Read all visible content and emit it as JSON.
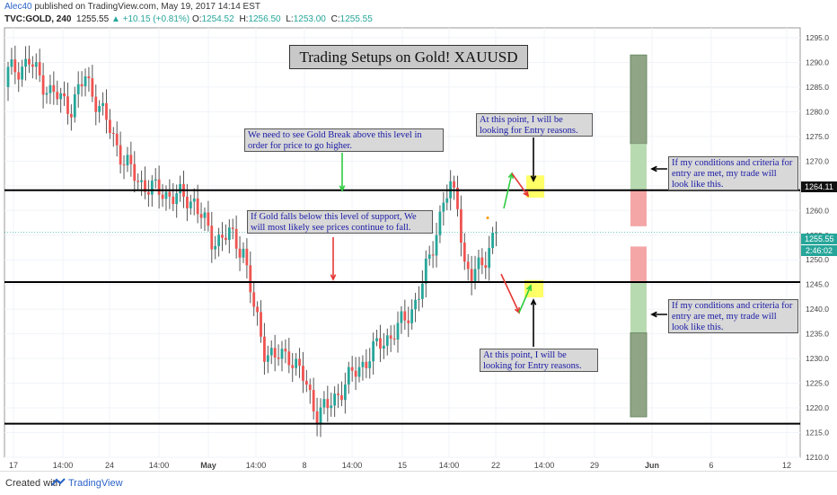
{
  "header": {
    "author": "Alec40",
    "published": "published on TradingView.com, May 19, 2017 14:14 EST",
    "symbol": "TVC:GOLD, 240",
    "last": "1255.55",
    "change": "▲ +10.15 (+0.81%)",
    "open_label": "O:",
    "open": "1254.52",
    "high_label": "H:",
    "high": "1256.50",
    "low_label": "L:",
    "low": "1253.00",
    "close_label": "C:",
    "close": "1255.55"
  },
  "title": "Trading Setups on Gold! XAUUSD",
  "annotations": {
    "break_above": "We need to see Gold Break above this level in order for price to go higher.",
    "falls_below": "If Gold falls below this level of support, We will most likely see prices continue to fall.",
    "entry_upper": "At this point, I will be looking for Entry reasons.",
    "entry_lower": "At this point, I will be looking for Entry reasons.",
    "trade_upper": "If my conditions and criteria for entry are met, my trade will look like this.",
    "trade_lower": "If my conditions and criteria for entry are met, my trade will look like this."
  },
  "price_labels": {
    "resistance": "1264.11",
    "last_price": "1255.55",
    "countdown": "2:46:02"
  },
  "footer": {
    "created": "Created with",
    "brand": "TradingView"
  },
  "colors": {
    "up": "#26a69a",
    "down": "#ef5350",
    "level_line": "#000000",
    "highlight": "#ffff66",
    "target": "#8fbf7f",
    "stop": "#f4a0a0"
  },
  "chart_data": {
    "type": "candlestick",
    "instrument": "TVC:GOLD",
    "timeframe": "240",
    "ylim": [
      1210,
      1297
    ],
    "y_ticks": [
      1210,
      1215,
      1220,
      1225,
      1230,
      1235,
      1240,
      1245,
      1250,
      1255,
      1260,
      1265,
      1270,
      1275,
      1280,
      1285,
      1290,
      1295
    ],
    "x_ticks": [
      "17",
      "14:00",
      "24",
      "14:00",
      "May",
      "14:00",
      "8",
      "14:00",
      "15",
      "14:00",
      "22",
      "14:00",
      "29",
      "Jun",
      "6",
      "12"
    ],
    "horizontal_levels": [
      1264.11,
      1245.5,
      1216.8
    ],
    "path_anchors": [
      [
        0,
        1288
      ],
      [
        6,
        1290
      ],
      [
        12,
        1284
      ],
      [
        18,
        1281
      ],
      [
        22,
        1287
      ],
      [
        28,
        1278
      ],
      [
        33,
        1270
      ],
      [
        37,
        1266
      ],
      [
        42,
        1264
      ],
      [
        47,
        1263
      ],
      [
        53,
        1262
      ],
      [
        58,
        1254
      ],
      [
        63,
        1255
      ],
      [
        67,
        1252
      ],
      [
        70,
        1240
      ],
      [
        73,
        1232
      ],
      [
        76,
        1230
      ],
      [
        80,
        1231
      ],
      [
        84,
        1226
      ],
      [
        88,
        1219
      ],
      [
        91,
        1220
      ],
      [
        96,
        1225
      ],
      [
        101,
        1229
      ],
      [
        106,
        1233
      ],
      [
        111,
        1236
      ],
      [
        115,
        1240
      ],
      [
        118,
        1245
      ],
      [
        121,
        1253
      ],
      [
        124,
        1262
      ],
      [
        126,
        1264
      ],
      [
        128,
        1262
      ],
      [
        130,
        1249
      ],
      [
        132,
        1246
      ],
      [
        136,
        1251
      ],
      [
        139,
        1255.55
      ]
    ],
    "start_price": 1285
  }
}
